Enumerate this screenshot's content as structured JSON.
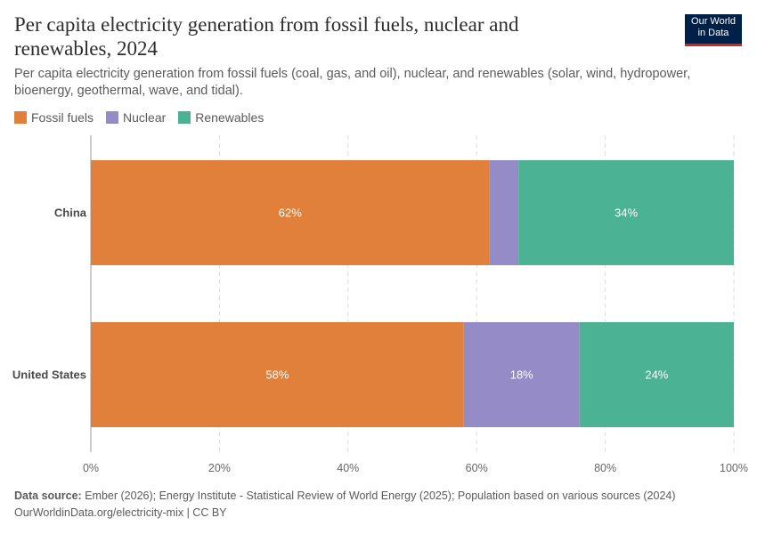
{
  "header": {
    "title": "Per capita electricity generation from fossil fuels, nuclear and renewables, 2024",
    "subtitle": "Per capita electricity generation from fossil fuels (coal, gas, and oil), nuclear, and renewables (solar, wind, hydropower, bioenergy, geothermal, wave, and tidal).",
    "logo_line1": "Our World",
    "logo_line2": "in Data"
  },
  "legend": [
    {
      "label": "Fossil fuels",
      "color": "#e0803a"
    },
    {
      "label": "Nuclear",
      "color": "#958bc6"
    },
    {
      "label": "Renewables",
      "color": "#4bb293"
    }
  ],
  "chart_data": {
    "type": "bar",
    "orientation": "horizontal",
    "stacked": true,
    "categories": [
      "China",
      "United States"
    ],
    "series": [
      {
        "name": "Fossil fuels",
        "color": "#e0803a",
        "values": [
          62,
          58
        ],
        "labels": [
          "62%",
          "58%"
        ]
      },
      {
        "name": "Nuclear",
        "color": "#958bc6",
        "values": [
          4.5,
          18
        ],
        "labels": [
          "",
          "18%"
        ]
      },
      {
        "name": "Renewables",
        "color": "#4bb293",
        "values": [
          33.5,
          24
        ],
        "labels": [
          "34%",
          "24%"
        ]
      }
    ],
    "xlim": [
      0,
      100
    ],
    "xticks": [
      "0%",
      "20%",
      "40%",
      "60%",
      "80%",
      "100%"
    ],
    "grid": true,
    "legend_position": "top-left"
  },
  "footer": {
    "source_label": "Data source:",
    "source_text": "Ember (2026); Energy Institute - Statistical Review of World Energy (2025); Population based on various sources (2024)",
    "url_text": "OurWorldinData.org/electricity-mix | CC BY"
  }
}
